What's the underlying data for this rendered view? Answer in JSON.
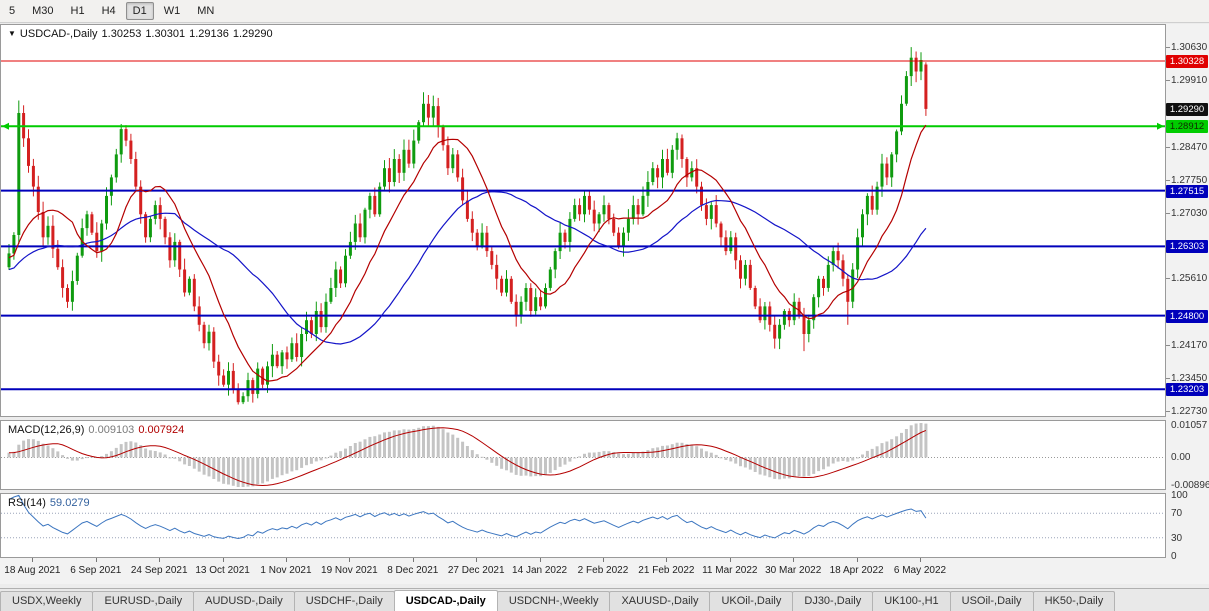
{
  "toolbar": {
    "timeframes": [
      "5",
      "M30",
      "H1",
      "H4",
      "D1",
      "W1",
      "MN"
    ],
    "active": "D1"
  },
  "chart": {
    "arrow_icon": "▼",
    "symbol_period": "USDCAD-,Daily",
    "open": "1.30253",
    "high": "1.30301",
    "low": "1.29136",
    "close": "1.29290"
  },
  "price_axis": {
    "plain_labels": [
      {
        "price": 1.3063,
        "label": "1.30630"
      },
      {
        "price": 1.2991,
        "label": "1.29910"
      },
      {
        "price": 1.2847,
        "label": "1.28470"
      },
      {
        "price": 1.2775,
        "label": "1.27750"
      },
      {
        "price": 1.2703,
        "label": "1.27030"
      },
      {
        "price": 1.2561,
        "label": "1.25610"
      },
      {
        "price": 1.2417,
        "label": "1.24170"
      },
      {
        "price": 1.2345,
        "label": "1.23450"
      },
      {
        "price": 1.2273,
        "label": "1.22730"
      }
    ],
    "tags": [
      {
        "price": 1.30328,
        "label": "1.30328",
        "bg": "#e00000",
        "fg": "#ffffff",
        "name": "resistance-red"
      },
      {
        "price": 1.2929,
        "label": "1.29290",
        "bg": "#111111",
        "fg": "#ffffff",
        "name": "current-price"
      },
      {
        "price": 1.28912,
        "label": "1.28912",
        "bg": "#00cc00",
        "fg": "#102a00",
        "name": "support-green"
      },
      {
        "price": 1.27515,
        "label": "1.27515",
        "bg": "#0000bb",
        "fg": "#ffffff",
        "name": "level-blue-1"
      },
      {
        "price": 1.26303,
        "label": "1.26303",
        "bg": "#0000bb",
        "fg": "#ffffff",
        "name": "level-blue-2"
      },
      {
        "price": 1.248,
        "label": "1.24800",
        "bg": "#0000bb",
        "fg": "#ffffff",
        "name": "level-blue-3"
      },
      {
        "price": 1.23203,
        "label": "1.23203",
        "bg": "#0000bb",
        "fg": "#ffffff",
        "name": "level-blue-4"
      }
    ]
  },
  "indicators": {
    "macd": {
      "label": "MACD(12,26,9)",
      "main_value": "0.009103",
      "signal_value": "0.007924",
      "axis_labels": [
        {
          "value": 0.01057,
          "label": "0.01057"
        },
        {
          "value": 0,
          "label": "0.00"
        },
        {
          "value": -0.00896,
          "label": "-0.00896"
        }
      ]
    },
    "rsi": {
      "label": "RSI(14)",
      "value": "59.0279",
      "levels": [
        70,
        30
      ],
      "axis_labels": [
        {
          "value": 100,
          "label": "100"
        },
        {
          "value": 70,
          "label": "70"
        },
        {
          "value": 30,
          "label": "30"
        },
        {
          "value": 0,
          "label": "0"
        }
      ]
    }
  },
  "time_axis": {
    "first_label_bar": 5,
    "bar_step": 13,
    "labels": [
      "18 Aug 2021",
      "6 Sep 2021",
      "24 Sep 2021",
      "13 Oct 2021",
      "1 Nov 2021",
      "19 Nov 2021",
      "8 Dec 2021",
      "27 Dec 2021",
      "14 Jan 2022",
      "2 Feb 2022",
      "21 Feb 2022",
      "11 Mar 2022",
      "30 Mar 2022",
      "18 Apr 2022",
      "6 May 2022"
    ]
  },
  "tabs": {
    "selected": "USDCAD-,Daily",
    "items": [
      "USDX,Weekly",
      "EURUSD-,Daily",
      "AUDUSD-,Daily",
      "USDCHF-,Daily",
      "USDCAD-,Daily",
      "USDCNH-,Weekly",
      "XAUUSD-,Daily",
      "UKOil-,Daily",
      "DJ30-,Daily",
      "UK100-,H1",
      "USOil-,Daily",
      "HK50-,Daily"
    ]
  },
  "colors": {
    "up": "#0f9b0f",
    "down": "#d42020",
    "ma_fast": "#b40000",
    "ma_slow": "#1414c8",
    "hline_red": "#e00000",
    "hline_green": "#00cc00",
    "hline_blue": "#0000bb",
    "macd_hist": "#c4c4c4",
    "macd_signal": "#b40000",
    "rsi_line": "#3c76c0",
    "level_dotted": "#9aa4b8"
  },
  "chart_data": {
    "type": "candlestick",
    "symbol": "USDCAD-",
    "timeframe": "Daily",
    "last_bar": {
      "open": 1.30253,
      "high": 1.30301,
      "low": 1.29136,
      "close": 1.2929
    },
    "hlines": [
      {
        "price": 1.30328,
        "color": "#e00000",
        "width": 1,
        "name": "resistance-red"
      },
      {
        "price": 1.28912,
        "color": "#00cc00",
        "width": 2,
        "name": "support-green"
      },
      {
        "price": 1.27515,
        "color": "#0000bb",
        "width": 2,
        "name": "level-blue-1"
      },
      {
        "price": 1.26303,
        "color": "#0000bb",
        "width": 2,
        "name": "level-blue-2"
      },
      {
        "price": 1.248,
        "color": "#0000bb",
        "width": 2,
        "name": "level-blue-3"
      },
      {
        "price": 1.23203,
        "color": "#0000bb",
        "width": 2,
        "name": "level-blue-4"
      }
    ],
    "price_range": {
      "top": 1.3111,
      "bottom": 1.2262
    },
    "ma_periods": {
      "fast": 12,
      "slow": 33
    },
    "macd_params": {
      "fast": 12,
      "slow": 26,
      "signal": 9
    },
    "rsi_period": 14,
    "seed": {
      "start": 1.252,
      "step": 0.00025,
      "count": 40
    },
    "closes": [
      1.2615,
      1.2655,
      1.292,
      1.2865,
      1.2805,
      1.276,
      1.2705,
      1.265,
      1.2675,
      1.2625,
      1.2585,
      1.254,
      1.251,
      1.2555,
      1.261,
      1.267,
      1.27,
      1.266,
      1.262,
      1.268,
      1.274,
      1.278,
      1.283,
      1.2885,
      1.286,
      1.282,
      1.276,
      1.27,
      1.265,
      1.269,
      1.272,
      1.269,
      1.265,
      1.26,
      1.264,
      1.258,
      1.253,
      1.256,
      1.25,
      1.246,
      1.242,
      1.2445,
      1.238,
      1.235,
      1.233,
      1.236,
      1.232,
      1.2292,
      1.2305,
      1.234,
      1.231,
      1.2365,
      1.233,
      1.237,
      1.2395,
      1.237,
      1.24,
      1.2385,
      1.242,
      1.239,
      1.244,
      1.247,
      1.244,
      1.249,
      1.2455,
      1.251,
      1.254,
      1.258,
      1.255,
      1.261,
      1.264,
      1.268,
      1.265,
      1.271,
      1.274,
      1.27,
      1.276,
      1.28,
      1.277,
      1.282,
      1.279,
      1.284,
      1.281,
      1.286,
      1.29,
      1.294,
      1.291,
      1.2935,
      1.289,
      1.285,
      1.28,
      1.283,
      1.278,
      1.273,
      1.269,
      1.266,
      1.263,
      1.266,
      1.262,
      1.259,
      1.256,
      1.253,
      1.256,
      1.251,
      1.248,
      1.251,
      1.254,
      1.249,
      1.252,
      1.25,
      1.254,
      1.258,
      1.262,
      1.266,
      1.264,
      1.269,
      1.272,
      1.27,
      1.274,
      1.271,
      1.268,
      1.27,
      1.272,
      1.269,
      1.266,
      1.263,
      1.266,
      1.269,
      1.272,
      1.27,
      1.274,
      1.277,
      1.28,
      1.278,
      1.282,
      1.279,
      1.284,
      1.2865,
      1.282,
      1.278,
      1.28,
      1.276,
      1.272,
      1.269,
      1.272,
      1.268,
      1.265,
      1.262,
      1.265,
      1.26,
      1.256,
      1.259,
      1.254,
      1.25,
      1.247,
      1.25,
      1.246,
      1.243,
      1.246,
      1.249,
      1.247,
      1.251,
      1.248,
      1.244,
      1.247,
      1.252,
      1.256,
      1.254,
      1.259,
      1.262,
      1.26,
      1.256,
      1.251,
      1.258,
      1.265,
      1.27,
      1.274,
      1.271,
      1.276,
      1.281,
      1.278,
      1.283,
      1.288,
      1.294,
      1.3,
      1.304,
      1.301,
      1.3035,
      1.2929
    ],
    "wick_overrides": {
      "2": {
        "h": 1.2947
      },
      "23": {
        "h": 1.2896
      },
      "47": {
        "l": 1.2287
      },
      "85": {
        "h": 1.2965
      },
      "137": {
        "h": 1.2877
      },
      "163": {
        "l": 1.2403
      },
      "172": {
        "l": 1.246
      },
      "185": {
        "h": 1.3063
      },
      "187": {
        "h": 1.3052
      },
      "188": {
        "o": 1.30253,
        "h": 1.30301,
        "l": 1.29136,
        "c": 1.2929
      }
    }
  }
}
